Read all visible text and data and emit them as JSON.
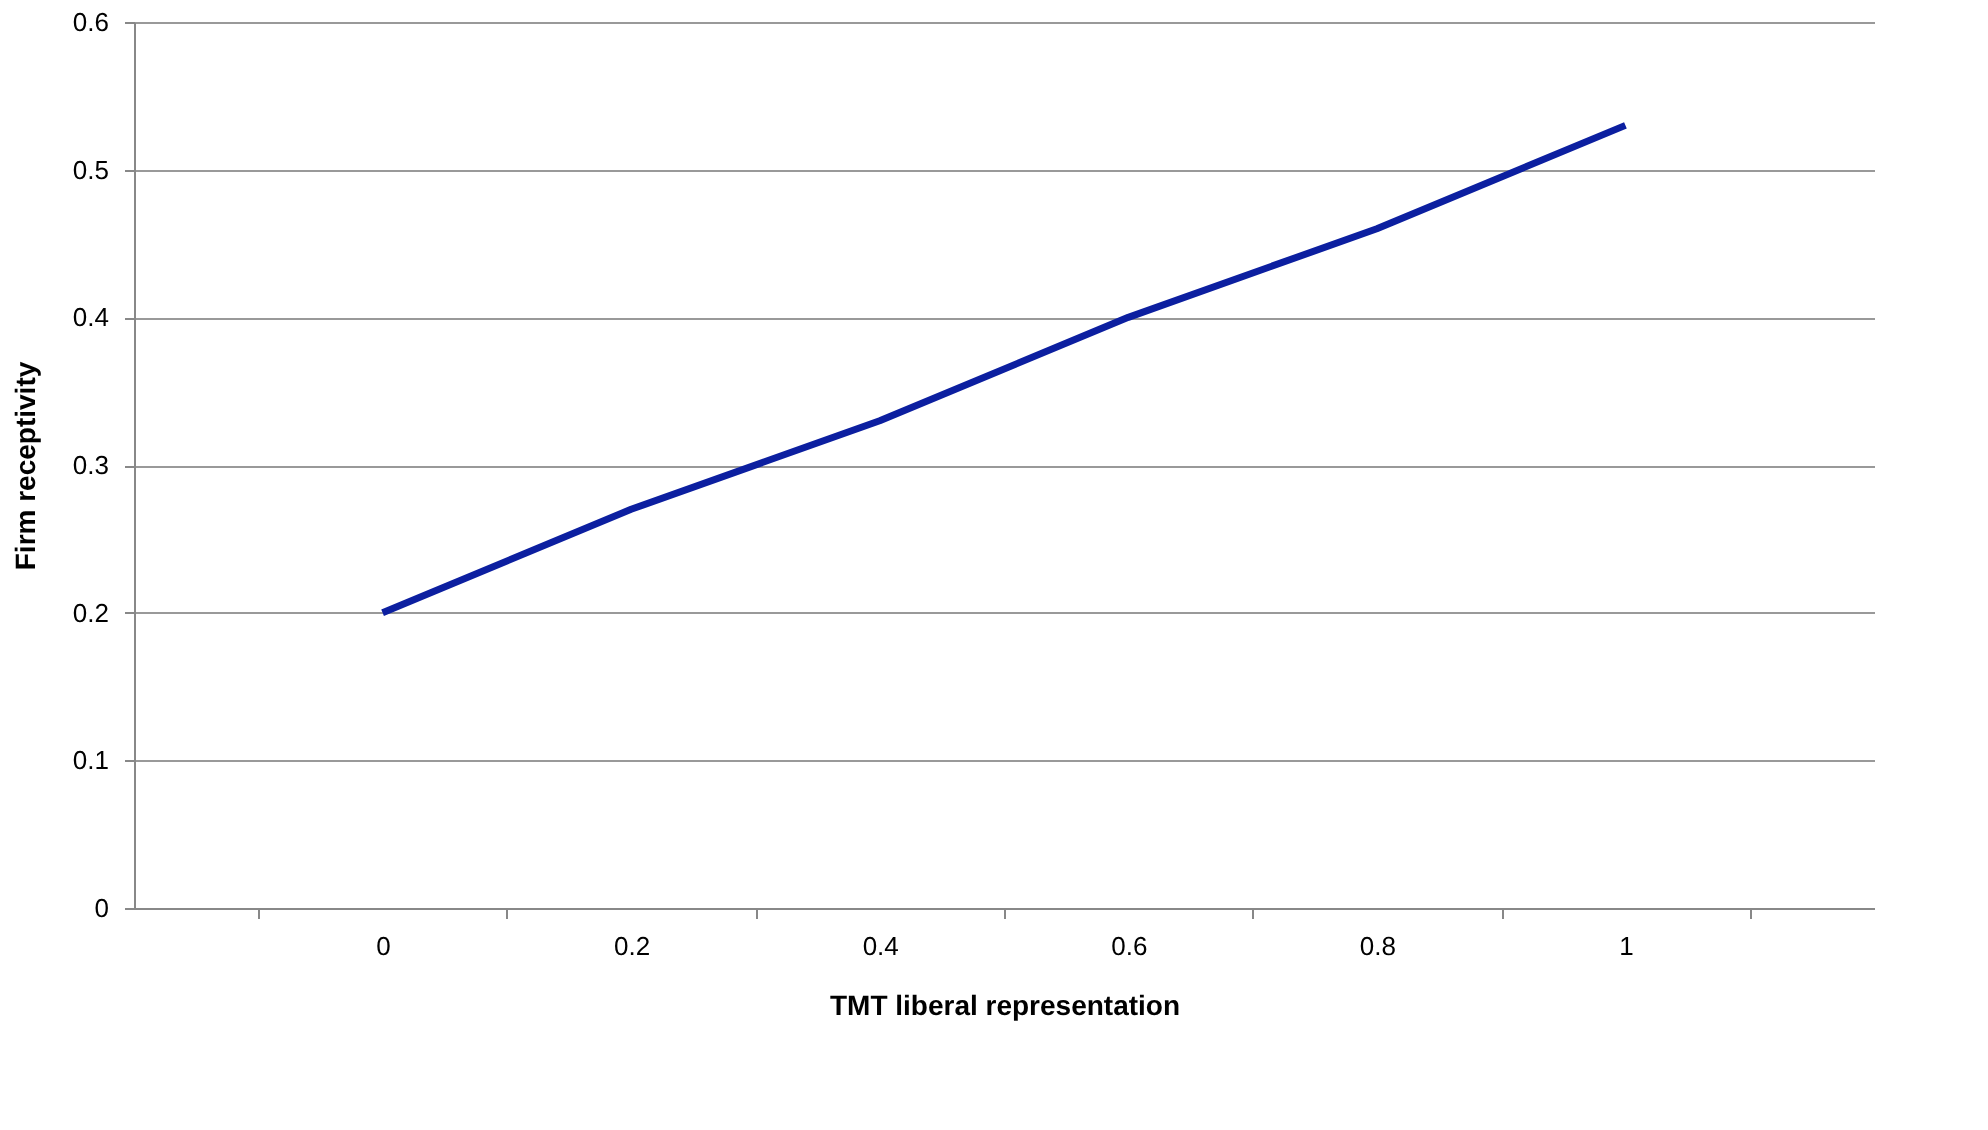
{
  "chart_data": {
    "type": "line",
    "xlabel": "TMT liberal representation",
    "ylabel": "Firm receptivity",
    "categories": [
      "0",
      "0.2",
      "0.4",
      "0.6",
      "0.8",
      "1"
    ],
    "series": [
      {
        "color": "#0c1fa0",
        "values": [
          0.2,
          0.27,
          0.33,
          0.4,
          0.46,
          0.53
        ]
      }
    ],
    "ylim": [
      0,
      0.6
    ],
    "yticks": [
      0,
      0.1,
      0.2,
      0.3,
      0.4,
      0.5,
      0.6
    ],
    "grid": "y",
    "marker": "none",
    "line_style": "solid"
  }
}
